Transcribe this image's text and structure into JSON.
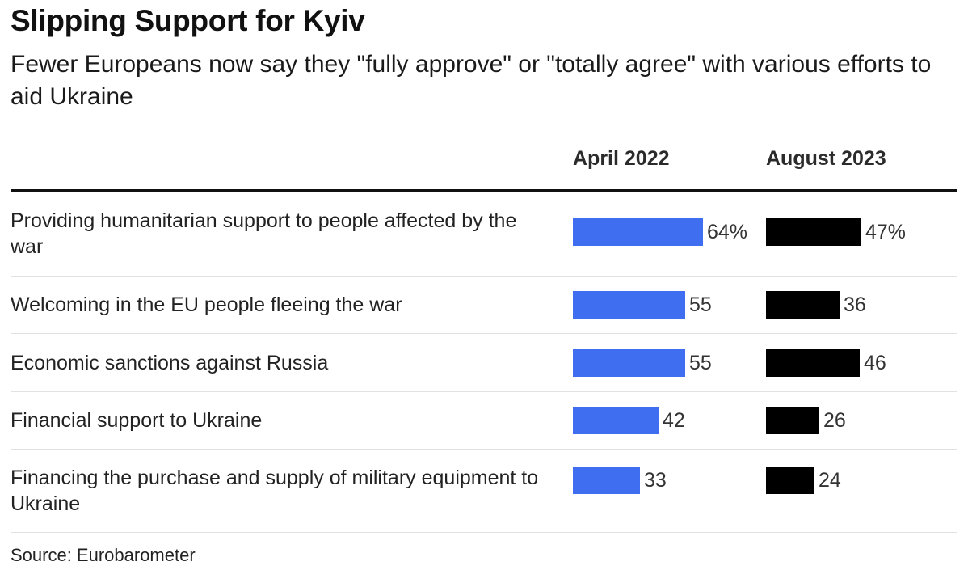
{
  "title": "Slipping Support for Kyiv",
  "subtitle": "Fewer Europeans now say they \"fully approve\" or \"totally agree\" with various efforts to aid Ukraine",
  "source": "Source: Eurobarometer",
  "colors": {
    "april_2022": "#3f6ff0",
    "august_2023": "#000000"
  },
  "chart_data": {
    "type": "bar",
    "orientation": "horizontal",
    "categories": [
      "Providing humanitarian support to people affected by the war",
      "Welcoming in the EU people fleeing the war",
      "Economic sanctions against Russia",
      "Financial support to Ukraine",
      "Financing the purchase and supply of military equipment to Ukraine"
    ],
    "series": [
      {
        "name": "April 2022",
        "values": [
          64,
          55,
          55,
          42,
          33
        ],
        "labels": [
          "64%",
          "55",
          "55",
          "42",
          "33"
        ]
      },
      {
        "name": "August 2023",
        "values": [
          47,
          36,
          46,
          26,
          24
        ],
        "labels": [
          "47%",
          "36",
          "46",
          "26",
          "24"
        ]
      }
    ],
    "unit": "%",
    "xlim": [
      0,
      100
    ]
  }
}
